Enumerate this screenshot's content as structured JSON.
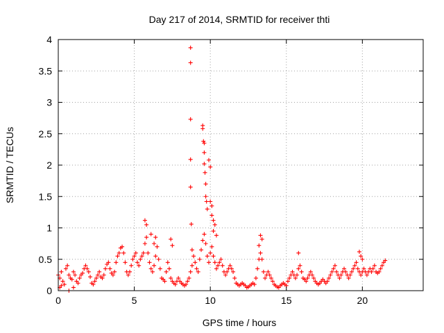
{
  "chart_data": {
    "type": "scatter",
    "title": "Day 217 of 2014, SRMTID for receiver thti",
    "xlabel": "GPS time / hours",
    "ylabel": "SRMTID / TECUs",
    "xlim": [
      0,
      24
    ],
    "ylim": [
      0,
      4
    ],
    "xticks": [
      0,
      5,
      10,
      15,
      20
    ],
    "xtick_labels": [
      "0",
      "5",
      "10",
      "15",
      "20"
    ],
    "yticks": [
      0,
      0.5,
      1,
      1.5,
      2,
      2.5,
      3,
      3.5,
      4
    ],
    "ytick_labels": [
      "0",
      "0.5",
      "1",
      "1.5",
      "2",
      "2.5",
      "3",
      "3.5",
      "4"
    ],
    "grid": true,
    "marker": "+",
    "marker_color": "#ff0000",
    "series": [
      {
        "name": "SRMTID",
        "x": [
          0.0,
          0.1,
          0.2,
          0.3,
          0.4,
          0.5,
          0.6,
          0.7,
          0.8,
          0.9,
          1.0,
          1.1,
          1.2,
          1.3,
          1.4,
          1.5,
          1.6,
          1.7,
          1.8,
          1.9,
          2.0,
          2.1,
          2.2,
          2.3,
          2.4,
          2.5,
          2.6,
          2.7,
          2.8,
          2.9,
          3.0,
          3.1,
          3.2,
          3.3,
          3.4,
          3.5,
          3.6,
          3.7,
          3.8,
          3.9,
          4.0,
          4.1,
          4.2,
          4.3,
          4.4,
          4.5,
          4.6,
          4.7,
          4.8,
          4.9,
          5.0,
          5.1,
          5.2,
          5.3,
          5.4,
          5.5,
          5.6,
          5.7,
          5.8,
          5.9,
          6.0,
          6.1,
          6.2,
          6.3,
          6.4,
          6.5,
          6.6,
          6.7,
          6.8,
          6.9,
          7.0,
          7.1,
          7.2,
          7.3,
          7.4,
          7.5,
          7.6,
          7.7,
          7.8,
          7.9,
          8.0,
          8.1,
          8.2,
          8.3,
          8.4,
          8.5,
          8.6,
          8.7,
          8.8,
          8.9,
          9.0,
          9.1,
          9.2,
          9.3,
          9.4,
          9.5,
          9.6,
          9.7,
          9.8,
          9.9,
          10.0,
          10.1,
          10.2,
          10.3,
          10.4,
          10.5,
          10.6,
          10.7,
          10.8,
          10.9,
          11.0,
          11.1,
          11.2,
          11.3,
          11.4,
          11.5,
          11.6,
          11.7,
          11.8,
          11.9,
          12.0,
          12.1,
          12.2,
          12.3,
          12.4,
          12.5,
          12.6,
          12.7,
          12.8,
          12.9,
          13.0,
          13.1,
          13.2,
          13.3,
          13.4,
          13.5,
          13.6,
          13.7,
          13.8,
          13.9,
          14.0,
          14.1,
          14.2,
          14.3,
          14.4,
          14.5,
          14.6,
          14.7,
          14.8,
          14.9,
          15.0,
          15.1,
          15.2,
          15.3,
          15.4,
          15.5,
          15.6,
          15.7,
          15.8,
          15.9,
          16.0,
          16.1,
          16.2,
          16.3,
          16.4,
          16.5,
          16.6,
          16.7,
          16.8,
          16.9,
          17.0,
          17.1,
          17.2,
          17.3,
          17.4,
          17.5,
          17.6,
          17.7,
          17.8,
          17.9,
          18.0,
          18.1,
          18.2,
          18.3,
          18.4,
          18.5,
          18.6,
          18.7,
          18.8,
          18.9,
          19.0,
          19.1,
          19.2,
          19.3,
          19.4,
          19.5,
          19.6,
          19.7,
          19.8,
          19.9,
          20.0,
          20.1,
          20.2,
          20.3,
          20.4,
          20.5,
          20.6,
          20.7,
          20.8,
          20.9,
          21.0,
          21.1,
          21.2,
          21.3,
          21.4,
          21.5,
          0.1,
          0.2,
          0.7,
          1.0,
          5.7,
          5.8,
          6.1,
          6.3,
          6.4,
          7.4,
          7.5,
          8.7,
          8.7,
          8.7,
          8.7,
          8.7,
          8.75,
          8.8,
          9.5,
          9.5,
          9.55,
          9.6,
          9.6,
          9.6,
          9.65,
          9.7,
          9.7,
          9.75,
          9.8,
          9.9,
          10.0,
          10.0,
          10.1,
          10.1,
          10.2,
          10.3,
          10.2,
          10.4,
          13.2,
          13.3,
          13.4,
          15.8,
          19.8,
          19.9,
          20.0
        ],
        "y": [
          0.25,
          0.2,
          0.3,
          0.15,
          0.1,
          0.35,
          0.4,
          0.25,
          0.2,
          0.18,
          0.3,
          0.25,
          0.15,
          0.12,
          0.2,
          0.25,
          0.28,
          0.35,
          0.4,
          0.35,
          0.3,
          0.22,
          0.12,
          0.1,
          0.15,
          0.2,
          0.25,
          0.3,
          0.22,
          0.2,
          0.25,
          0.35,
          0.42,
          0.45,
          0.35,
          0.28,
          0.25,
          0.3,
          0.45,
          0.55,
          0.6,
          0.68,
          0.7,
          0.6,
          0.45,
          0.3,
          0.25,
          0.3,
          0.4,
          0.5,
          0.55,
          0.6,
          0.45,
          0.4,
          0.5,
          0.55,
          0.6,
          0.75,
          0.85,
          0.6,
          0.45,
          0.35,
          0.3,
          0.4,
          0.55,
          0.7,
          0.5,
          0.35,
          0.2,
          0.18,
          0.15,
          0.3,
          0.45,
          0.35,
          0.2,
          0.15,
          0.12,
          0.1,
          0.15,
          0.2,
          0.15,
          0.12,
          0.1,
          0.08,
          0.1,
          0.15,
          0.2,
          0.3,
          0.4,
          0.55,
          0.45,
          0.35,
          0.3,
          0.5,
          0.65,
          0.8,
          0.9,
          0.75,
          0.55,
          0.45,
          0.6,
          0.7,
          0.55,
          0.45,
          0.35,
          0.4,
          0.45,
          0.5,
          0.4,
          0.3,
          0.25,
          0.3,
          0.35,
          0.4,
          0.35,
          0.3,
          0.2,
          0.12,
          0.1,
          0.08,
          0.1,
          0.12,
          0.1,
          0.08,
          0.05,
          0.06,
          0.08,
          0.1,
          0.12,
          0.1,
          0.2,
          0.35,
          0.5,
          0.6,
          0.5,
          0.3,
          0.2,
          0.25,
          0.3,
          0.25,
          0.2,
          0.15,
          0.1,
          0.08,
          0.06,
          0.05,
          0.08,
          0.1,
          0.12,
          0.1,
          0.08,
          0.15,
          0.2,
          0.25,
          0.3,
          0.25,
          0.2,
          0.25,
          0.35,
          0.4,
          0.3,
          0.2,
          0.18,
          0.15,
          0.2,
          0.25,
          0.3,
          0.25,
          0.2,
          0.15,
          0.12,
          0.1,
          0.12,
          0.15,
          0.18,
          0.15,
          0.12,
          0.15,
          0.2,
          0.25,
          0.3,
          0.35,
          0.4,
          0.3,
          0.25,
          0.2,
          0.25,
          0.3,
          0.35,
          0.3,
          0.25,
          0.2,
          0.25,
          0.3,
          0.35,
          0.4,
          0.45,
          0.35,
          0.3,
          0.25,
          0.3,
          0.35,
          0.3,
          0.25,
          0.3,
          0.35,
          0.3,
          0.35,
          0.4,
          0.3,
          0.28,
          0.3,
          0.35,
          0.4,
          0.45,
          0.48,
          0.05,
          0.08,
          0.0,
          0.05,
          1.12,
          1.05,
          0.9,
          0.75,
          0.85,
          0.82,
          0.72,
          3.87,
          3.63,
          2.73,
          2.09,
          1.65,
          1.06,
          0.65,
          2.63,
          2.58,
          2.38,
          2.35,
          2.2,
          2.02,
          1.88,
          1.7,
          1.5,
          1.42,
          1.3,
          2.08,
          1.97,
          1.42,
          1.35,
          1.2,
          1.12,
          1.05,
          0.95,
          0.88,
          0.72,
          0.88,
          0.82,
          0.6,
          0.62,
          0.55,
          0.5
        ]
      }
    ]
  }
}
